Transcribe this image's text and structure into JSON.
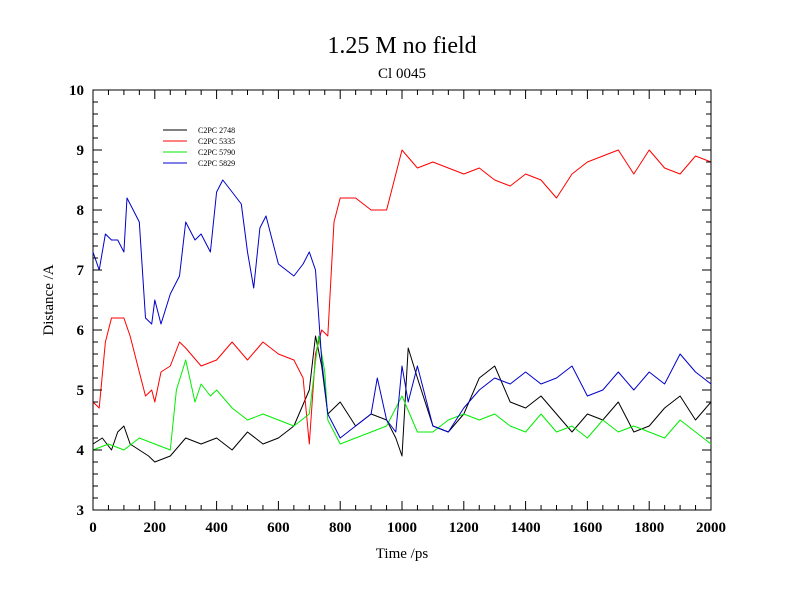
{
  "chart_data": {
    "type": "line",
    "title": "1.25 M no field",
    "subtitle": "Cl 0045",
    "xlabel": "Time /ps",
    "ylabel": "Distance /A",
    "xlim": [
      0,
      2000
    ],
    "ylim": [
      3,
      10
    ],
    "xticks": [
      0,
      200,
      400,
      600,
      800,
      1000,
      1200,
      1400,
      1600,
      1800,
      2000
    ],
    "yticks": [
      3,
      4,
      5,
      6,
      7,
      8,
      9,
      10
    ],
    "legend_position": "top-left",
    "grid": false,
    "series": [
      {
        "name": "C2PC 2748",
        "color": "#000000",
        "x": [
          0,
          30,
          60,
          80,
          100,
          120,
          150,
          180,
          200,
          250,
          300,
          350,
          400,
          450,
          500,
          550,
          600,
          650,
          700,
          720,
          740,
          760,
          800,
          850,
          900,
          950,
          980,
          1000,
          1020,
          1050,
          1100,
          1150,
          1200,
          1250,
          1300,
          1350,
          1400,
          1450,
          1500,
          1550,
          1600,
          1650,
          1700,
          1750,
          1800,
          1850,
          1900,
          1950,
          2000
        ],
        "values": [
          4.1,
          4.2,
          4.0,
          4.3,
          4.4,
          4.1,
          4.0,
          3.9,
          3.8,
          3.9,
          4.2,
          4.1,
          4.2,
          4.0,
          4.3,
          4.1,
          4.2,
          4.4,
          5.0,
          5.9,
          5.4,
          4.6,
          4.8,
          4.4,
          4.6,
          4.5,
          4.2,
          3.9,
          5.7,
          5.2,
          4.4,
          4.3,
          4.6,
          5.2,
          5.4,
          4.8,
          4.7,
          4.9,
          4.6,
          4.3,
          4.6,
          4.5,
          4.8,
          4.3,
          4.4,
          4.7,
          4.9,
          4.5,
          4.8
        ]
      },
      {
        "name": "C2PC 5335",
        "color": "#ff0000",
        "x": [
          0,
          20,
          40,
          60,
          100,
          120,
          150,
          170,
          190,
          200,
          220,
          250,
          280,
          300,
          350,
          400,
          450,
          500,
          550,
          600,
          650,
          680,
          700,
          720,
          740,
          760,
          780,
          800,
          850,
          900,
          950,
          1000,
          1050,
          1100,
          1150,
          1200,
          1250,
          1300,
          1350,
          1400,
          1450,
          1500,
          1550,
          1600,
          1650,
          1700,
          1750,
          1800,
          1850,
          1900,
          1950,
          2000
        ],
        "values": [
          4.8,
          4.7,
          5.8,
          6.2,
          6.2,
          5.9,
          5.3,
          4.9,
          5.0,
          4.8,
          5.3,
          5.4,
          5.8,
          5.7,
          5.4,
          5.5,
          5.8,
          5.5,
          5.8,
          5.6,
          5.5,
          5.2,
          4.1,
          5.6,
          6.0,
          5.9,
          7.8,
          8.2,
          8.2,
          8.0,
          8.0,
          9.0,
          8.7,
          8.8,
          8.7,
          8.6,
          8.7,
          8.5,
          8.4,
          8.6,
          8.5,
          8.2,
          8.6,
          8.8,
          8.9,
          9.0,
          8.6,
          9.0,
          8.7,
          8.6,
          8.9,
          8.8
        ]
      },
      {
        "name": "C2PC 5790",
        "color": "#00ee00",
        "x": [
          0,
          50,
          100,
          150,
          200,
          250,
          270,
          300,
          330,
          350,
          380,
          400,
          450,
          500,
          550,
          600,
          650,
          700,
          730,
          750,
          760,
          800,
          850,
          900,
          950,
          1000,
          1050,
          1100,
          1150,
          1200,
          1250,
          1300,
          1350,
          1400,
          1450,
          1500,
          1550,
          1600,
          1650,
          1700,
          1750,
          1800,
          1850,
          1900,
          1950,
          2000
        ],
        "values": [
          4.0,
          4.1,
          4.0,
          4.2,
          4.1,
          4.0,
          5.0,
          5.5,
          4.8,
          5.1,
          4.9,
          5.0,
          4.7,
          4.5,
          4.6,
          4.5,
          4.4,
          4.6,
          5.9,
          5.3,
          4.5,
          4.1,
          4.2,
          4.3,
          4.4,
          4.9,
          4.3,
          4.3,
          4.5,
          4.6,
          4.5,
          4.6,
          4.4,
          4.3,
          4.6,
          4.3,
          4.4,
          4.2,
          4.5,
          4.3,
          4.4,
          4.3,
          4.2,
          4.5,
          4.3,
          4.1
        ]
      },
      {
        "name": "C2PC 5829",
        "color": "#0000cc",
        "x": [
          0,
          20,
          40,
          60,
          80,
          100,
          110,
          130,
          150,
          170,
          190,
          200,
          220,
          250,
          280,
          300,
          330,
          350,
          380,
          400,
          420,
          450,
          480,
          500,
          520,
          540,
          560,
          600,
          650,
          680,
          700,
          720,
          740,
          760,
          800,
          850,
          900,
          920,
          950,
          980,
          1000,
          1020,
          1050,
          1100,
          1150,
          1200,
          1250,
          1300,
          1350,
          1400,
          1450,
          1500,
          1550,
          1600,
          1650,
          1700,
          1750,
          1800,
          1850,
          1900,
          1950,
          2000
        ],
        "values": [
          7.3,
          7.0,
          7.6,
          7.5,
          7.5,
          7.3,
          8.2,
          8.0,
          7.8,
          6.2,
          6.1,
          6.5,
          6.1,
          6.6,
          6.9,
          7.8,
          7.5,
          7.6,
          7.3,
          8.3,
          8.5,
          8.3,
          8.1,
          7.3,
          6.7,
          7.7,
          7.9,
          7.1,
          6.9,
          7.1,
          7.3,
          7.0,
          5.5,
          4.6,
          4.2,
          4.4,
          4.6,
          5.2,
          4.5,
          4.3,
          5.4,
          4.8,
          5.4,
          4.4,
          4.3,
          4.7,
          5.0,
          5.2,
          5.1,
          5.3,
          5.1,
          5.2,
          5.4,
          4.9,
          5.0,
          5.3,
          5.0,
          5.3,
          5.1,
          5.6,
          5.3,
          5.1
        ]
      }
    ]
  }
}
